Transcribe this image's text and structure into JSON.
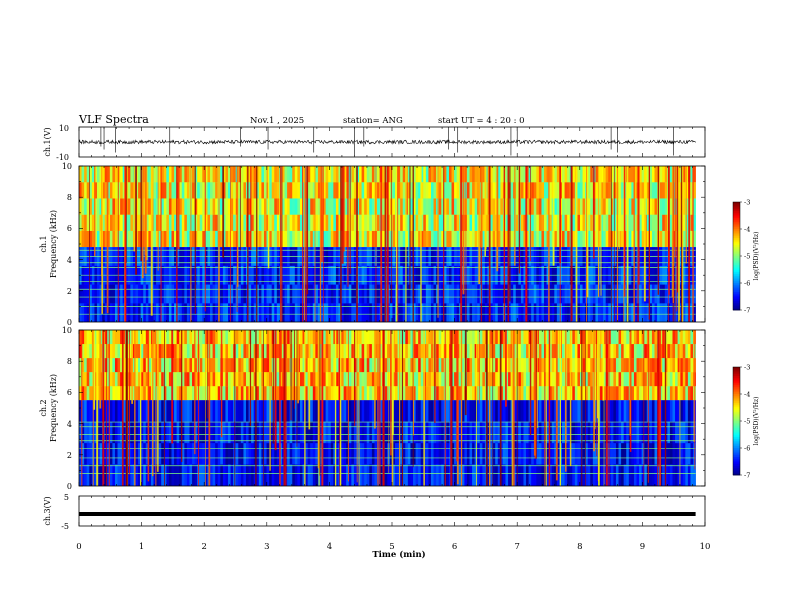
{
  "header": {
    "title": "VLF Spectra",
    "date": "Nov.1  , 2025",
    "station": "station= ANG",
    "start": "start  UT =   4 : 20 : 0"
  },
  "colorbar": {
    "label": "log(PSD)(V²/Hz)",
    "ticks": [
      "-3",
      "-4",
      "-5",
      "-6",
      "-7"
    ]
  },
  "colors": {
    "ch3_line": "#000000",
    "waveform": "#000000"
  },
  "chart_data": [
    {
      "type": "line",
      "name": "ch1-waveform",
      "ylabel": "ch.1(V)",
      "ylim": [
        -10,
        10
      ],
      "yticks": [
        "10",
        "-10"
      ],
      "xlim": [
        0,
        9.85
      ],
      "baseline": 0,
      "spikes_min": [
        0.35,
        0.4,
        0.58,
        1.45,
        2.58,
        3.02,
        3.75,
        4.4,
        4.55,
        5.9,
        6.05,
        6.9,
        7.0,
        8.5,
        8.6,
        9.5
      ]
    },
    {
      "type": "heatmap",
      "name": "ch1-spectrogram",
      "title": "ch.1",
      "ylabel": "Frequency  (kHz)",
      "yticks": [
        "0",
        "2",
        "4",
        "6",
        "8",
        "10"
      ],
      "ylim": [
        0,
        10
      ],
      "xlim": [
        0,
        9.85
      ],
      "zlim": [
        -7,
        -3
      ],
      "background_level_low": -6.3,
      "background_level_high": -4.8,
      "transition_khz": 4.8,
      "tone_lines_khz": [
        0.5,
        1.0,
        1.6,
        2.1,
        2.6,
        3.0,
        3.5,
        3.8,
        4.2,
        4.6
      ]
    },
    {
      "type": "heatmap",
      "name": "ch2-spectrogram",
      "title": "ch.2",
      "ylabel": "Frequency  (kHz)",
      "yticks": [
        "0",
        "2",
        "4",
        "6",
        "8",
        "10"
      ],
      "ylim": [
        0,
        10
      ],
      "xlim": [
        0,
        9.85
      ],
      "zlim": [
        -7,
        -3
      ],
      "background_level_low": -6.4,
      "background_level_high": -4.6,
      "transition_khz": 5.5,
      "tone_lines_khz": [
        0.8,
        1.3,
        1.8,
        2.4,
        2.9,
        3.3,
        3.8,
        4.1
      ]
    },
    {
      "type": "line",
      "name": "ch3-waveform",
      "ylabel": "ch.3(V)",
      "ylim": [
        -5,
        5
      ],
      "yticks": [
        "5",
        "-5"
      ],
      "xlim": [
        0,
        9.85
      ],
      "value": -1.0
    }
  ],
  "xaxis": {
    "label": "Time  (min)",
    "ticks": [
      "0",
      "1",
      "2",
      "3",
      "4",
      "5",
      "6",
      "7",
      "8",
      "9",
      "10"
    ],
    "xlim": [
      0,
      10
    ]
  }
}
